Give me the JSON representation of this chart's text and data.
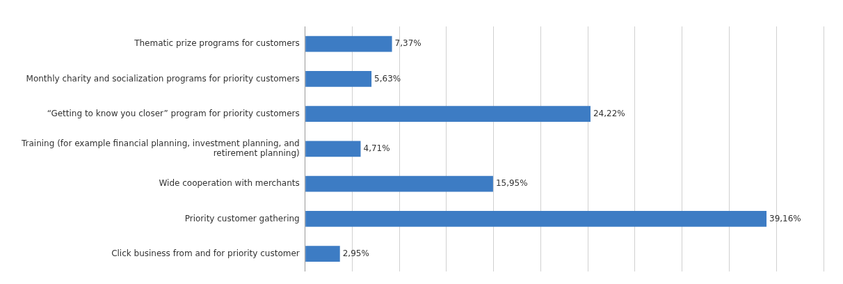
{
  "chart_data": {
    "type": "bar",
    "orientation": "horizontal",
    "categories": [
      "Thematic prize programs for customers",
      "Monthly charity and socialization programs for priority customers",
      "“Getting to know you closer” program for priority customers",
      "Training (for example financial planning, investment planning, and retirement planning)",
      "Wide cooperation with merchants",
      "Priority customer gathering",
      "Click business from and for priority customer"
    ],
    "values": [
      7.37,
      5.63,
      24.22,
      4.71,
      15.95,
      39.16,
      2.95
    ],
    "value_labels": [
      "7,37%",
      "5,63%",
      "24,22%",
      "4,71%",
      "15,95%",
      "39,16%",
      "2,95%"
    ],
    "color": "#3d7cc4",
    "xlim": [
      0,
      44
    ],
    "xticks": [
      {
        "value": 0,
        "label": null
      },
      {
        "value": 4,
        "label": null
      },
      {
        "value": 8,
        "label": null
      },
      {
        "value": 12,
        "label": null
      },
      {
        "value": 16,
        "label": null
      },
      {
        "value": 20,
        "label": null
      },
      {
        "value": 24,
        "label": null
      },
      {
        "value": 28,
        "label": null
      },
      {
        "value": 32,
        "label": null
      },
      {
        "value": 36,
        "label": null
      },
      {
        "value": 40,
        "label": null
      },
      {
        "value": 44,
        "label": null
      }
    ],
    "grid": "x",
    "tick_labels": "y",
    "legend": false
  }
}
